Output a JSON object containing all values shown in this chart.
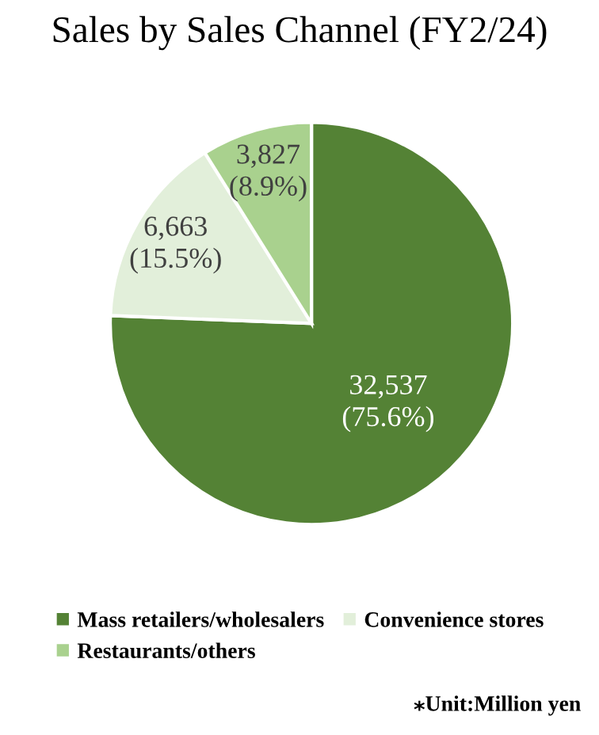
{
  "chart_data": {
    "type": "pie",
    "title": "Sales by Sales Channel (FY2/24)",
    "categories": [
      "Mass retailers/wholesalers",
      "Convenience stores",
      "Restaurants/others"
    ],
    "values": [
      32537,
      6663,
      3827
    ],
    "value_labels": [
      "32,537\n(75.6%)",
      "6,663\n(15.5%)",
      "3,827\n(8.9%)"
    ],
    "colors": [
      "#548235",
      "#e2efda",
      "#a9d18e"
    ],
    "legend": "bottom",
    "annotations": [
      "⁎Unit:Million yen"
    ]
  }
}
